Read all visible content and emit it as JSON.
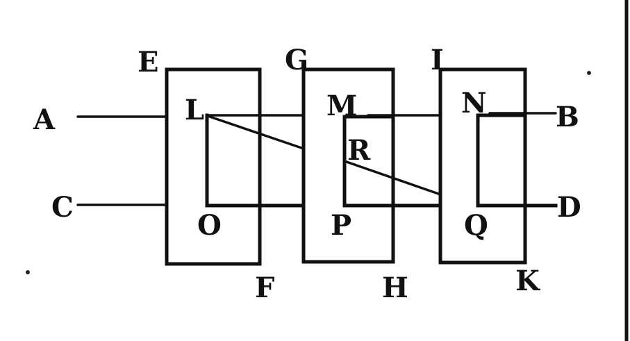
{
  "labels": {
    "A": "A",
    "B": "B",
    "C": "C",
    "D": "D",
    "E": "E",
    "F": "F",
    "G": "G",
    "H": "H",
    "I": "I",
    "K": "K",
    "L": "L",
    "M": "M",
    "N": "N",
    "O": "O",
    "P": "P",
    "Q": "Q",
    "R": "R"
  }
}
